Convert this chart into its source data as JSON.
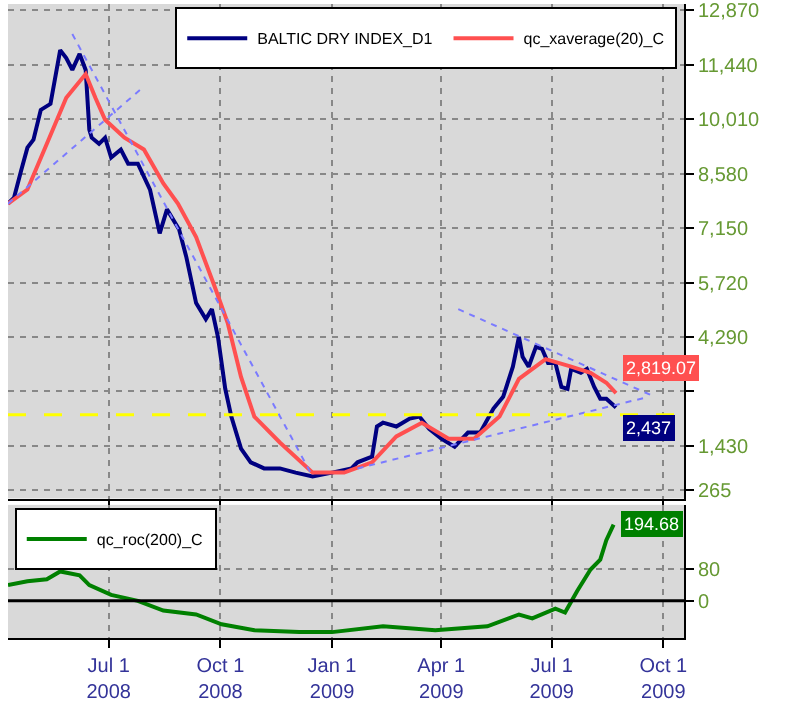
{
  "chart_data": [
    {
      "type": "line",
      "xlim": [
        "2008-04-09",
        "2009-10-18"
      ],
      "xticks": [
        {
          "value": "2008-07-01",
          "label": null
        },
        {
          "value": "2008-10-01",
          "label": null
        },
        {
          "value": "2009-01-01",
          "label": null
        },
        {
          "value": "2009-04-01",
          "label": null
        },
        {
          "value": "2009-07-01",
          "label": null
        },
        {
          "value": "2009-10-01",
          "label": null
        }
      ],
      "ylim": [
        50,
        13030
      ],
      "yticks": [
        265,
        {
          "value": 1430,
          "label": "1,430"
        },
        {
          "value": 2860,
          "label": null
        },
        {
          "value": 4290,
          "label": "4,290"
        },
        {
          "value": 5720,
          "label": "5,720"
        },
        {
          "value": 7150,
          "label": "7,150"
        },
        {
          "value": 8580,
          "label": "8,580"
        },
        {
          "value": 10010,
          "label": "10,010"
        },
        {
          "value": 11440,
          "label": "11,440"
        },
        {
          "value": 12870,
          "label": "12,870"
        }
      ],
      "tick_labels": "y",
      "grid": true,
      "legend": "top right",
      "ref_lines": [
        {
          "axis": "y",
          "value": 2250,
          "color": "#ffff00",
          "line_style": "dashed"
        }
      ],
      "series": [
        {
          "name": "BALTIC DRY INDEX_D1",
          "color": "#000080",
          "x": [
            "2008-04-09",
            "2008-04-14",
            "2008-04-20",
            "2008-04-25",
            "2008-04-30",
            "2008-05-06",
            "2008-05-14",
            "2008-05-22",
            "2008-05-27",
            "2008-06-01",
            "2008-06-07",
            "2008-06-12",
            "2008-06-15",
            "2008-06-17",
            "2008-06-23",
            "2008-06-28",
            "2008-07-03",
            "2008-07-11",
            "2008-07-17",
            "2008-07-25",
            "2008-08-04",
            "2008-08-12",
            "2008-08-18",
            "2008-08-28",
            "2008-09-03",
            "2008-09-11",
            "2008-09-19",
            "2008-09-24",
            "2008-09-29",
            "2008-10-05",
            "2008-10-10",
            "2008-10-18",
            "2008-10-26",
            "2008-11-06",
            "2008-11-19",
            "2008-12-02",
            "2008-12-16",
            "2009-01-01",
            "2009-01-17",
            "2009-01-22",
            "2009-02-03",
            "2009-02-07",
            "2009-02-12",
            "2009-02-23",
            "2009-03-06",
            "2009-03-14",
            "2009-03-22",
            "2009-04-01",
            "2009-04-12",
            "2009-04-23",
            "2009-05-03",
            "2009-05-14",
            "2009-05-22",
            "2009-05-30",
            "2009-06-04",
            "2009-06-07",
            "2009-06-12",
            "2009-06-18",
            "2009-06-23",
            "2009-06-28",
            "2009-07-04",
            "2009-07-09",
            "2009-07-14",
            "2009-07-17",
            "2009-07-25",
            "2009-07-30",
            "2009-08-05",
            "2009-08-10",
            "2009-08-15",
            "2009-08-23"
          ],
          "values": [
            7790,
            7950,
            8680,
            9260,
            9470,
            10250,
            10410,
            11820,
            11610,
            11300,
            11720,
            11300,
            9730,
            9520,
            9360,
            9520,
            9000,
            9210,
            8840,
            8840,
            8160,
            7010,
            7640,
            7110,
            6380,
            5180,
            4760,
            5020,
            4290,
            2930,
            2200,
            1360,
            1000,
            840,
            840,
            730,
            630,
            730,
            840,
            1000,
            1150,
            1940,
            2040,
            1940,
            2150,
            2200,
            1880,
            1620,
            1410,
            1780,
            1780,
            2410,
            2720,
            3510,
            4290,
            3770,
            3510,
            4030,
            3980,
            3610,
            3610,
            2980,
            2930,
            3450,
            3350,
            3450,
            2980,
            2670,
            2670,
            2437
          ],
          "value_labels": [
            null,
            null,
            null,
            null,
            null,
            null,
            null,
            null,
            null,
            null,
            null,
            null,
            null,
            null,
            null,
            null,
            null,
            null,
            null,
            null,
            null,
            null,
            null,
            null,
            null,
            null,
            null,
            null,
            null,
            null,
            null,
            null,
            null,
            null,
            null,
            null,
            null,
            null,
            null,
            null,
            null,
            null,
            null,
            null,
            null,
            null,
            null,
            null,
            null,
            null,
            null,
            null,
            null,
            null,
            null,
            null,
            null,
            null,
            null,
            null,
            null,
            null,
            null,
            null,
            null,
            null,
            null,
            null,
            null,
            "2,437"
          ]
        },
        {
          "name": "qc_xaverage(20)_C",
          "color": "#ff5050",
          "x": [
            "2008-04-09",
            "2008-04-25",
            "2008-05-11",
            "2008-05-27",
            "2008-06-12",
            "2008-06-20",
            "2008-06-28",
            "2008-07-14",
            "2008-07-30",
            "2008-08-15",
            "2008-08-27",
            "2008-09-11",
            "2008-09-27",
            "2008-10-07",
            "2008-10-18",
            "2008-10-29",
            "2008-11-19",
            "2008-12-16",
            "2009-01-11",
            "2009-02-03",
            "2009-02-23",
            "2009-03-16",
            "2009-04-07",
            "2009-04-28",
            "2009-05-19",
            "2009-06-04",
            "2009-06-26",
            "2009-07-17",
            "2009-08-02",
            "2009-08-15",
            "2009-08-23"
          ],
          "values": [
            7790,
            8160,
            9360,
            10570,
            11190,
            10570,
            9990,
            9520,
            9210,
            8320,
            7790,
            6910,
            5550,
            4660,
            3240,
            2200,
            1520,
            730,
            730,
            1000,
            1680,
            2040,
            1620,
            1620,
            2200,
            3190,
            3710,
            3510,
            3350,
            3090,
            2819.07
          ],
          "value_labels": [
            null,
            null,
            null,
            null,
            null,
            null,
            null,
            null,
            null,
            null,
            null,
            null,
            null,
            null,
            null,
            null,
            null,
            null,
            null,
            null,
            null,
            null,
            null,
            null,
            null,
            null,
            null,
            null,
            null,
            null,
            "2,819.07"
          ]
        },
        {
          "color": "#7b7bff",
          "line_style": "dotted",
          "x": [
            "2008-04-09",
            "2008-07-27"
          ],
          "values": [
            7790,
            10780
          ]
        },
        {
          "color": "#7b7bff",
          "line_style": "dotted",
          "x": [
            "2008-06-01",
            "2008-12-16"
          ],
          "values": [
            12240,
            630
          ]
        },
        {
          "color": "#7b7bff",
          "line_style": "dotted",
          "x": [
            "2009-04-15",
            "2009-09-24"
          ],
          "values": [
            5020,
            2720
          ]
        },
        {
          "color": "#7b7bff",
          "line_style": "dotted",
          "x": [
            "2009-01-22",
            "2009-09-19"
          ],
          "values": [
            840,
            2720
          ]
        }
      ]
    },
    {
      "type": "line",
      "xlim": [
        "2008-04-09",
        "2009-10-18"
      ],
      "xticks": [
        {
          "value": "2008-07-01",
          "label": "Jul 1\n2008"
        },
        {
          "value": "2008-10-01",
          "label": "Oct 1\n2008"
        },
        {
          "value": "2009-01-01",
          "label": "Jan 1\n2009"
        },
        {
          "value": "2009-04-01",
          "label": "Apr 1\n2009"
        },
        {
          "value": "2009-07-01",
          "label": "Jul 1\n2009"
        },
        {
          "value": "2009-10-01",
          "label": "Oct 1\n2009"
        }
      ],
      "ylim": [
        -95,
        245
      ],
      "yticks": [
        0,
        80
      ],
      "grid": true,
      "legend": "top left",
      "ref_lines": [
        {
          "axis": "y",
          "value": 0,
          "color": "#000000"
        }
      ],
      "series": [
        {
          "name": "qc_roc(200)_C",
          "color": "#008000",
          "x": [
            "2008-04-09",
            "2008-04-25",
            "2008-05-11",
            "2008-05-22",
            "2008-06-07",
            "2008-06-15",
            "2008-07-03",
            "2008-07-25",
            "2008-08-15",
            "2008-09-11",
            "2008-10-02",
            "2008-10-29",
            "2008-12-05",
            "2009-01-01",
            "2009-02-12",
            "2009-03-27",
            "2009-05-09",
            "2009-06-04",
            "2009-06-15",
            "2009-07-04",
            "2009-07-12",
            "2009-07-22",
            "2009-08-02",
            "2009-08-10",
            "2009-08-15",
            "2009-08-21"
          ],
          "values": [
            40,
            50,
            55,
            75,
            65,
            40,
            15,
            0,
            -25,
            -35,
            -60,
            -75,
            -80,
            -80,
            -65,
            -75,
            -65,
            -35,
            -45,
            -20,
            -30,
            25,
            80,
            105,
            155,
            194.68
          ],
          "value_labels": [
            null,
            null,
            null,
            null,
            null,
            null,
            null,
            null,
            null,
            null,
            null,
            null,
            null,
            null,
            null,
            null,
            null,
            null,
            null,
            null,
            null,
            null,
            null,
            null,
            null,
            "194.68"
          ]
        }
      ]
    }
  ]
}
